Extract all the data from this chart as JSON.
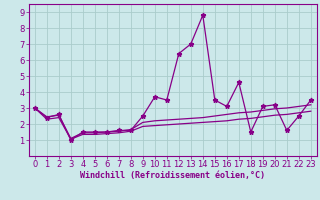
{
  "xlabel": "Windchill (Refroidissement éolien,°C)",
  "bg_color": "#cce8ea",
  "grid_color": "#aacccc",
  "line_color": "#880088",
  "xlim": [
    -0.5,
    23.5
  ],
  "ylim": [
    0,
    9.5
  ],
  "xticks": [
    0,
    1,
    2,
    3,
    4,
    5,
    6,
    7,
    8,
    9,
    10,
    11,
    12,
    13,
    14,
    15,
    16,
    17,
    18,
    19,
    20,
    21,
    22,
    23
  ],
  "yticks": [
    1,
    2,
    3,
    4,
    5,
    6,
    7,
    8,
    9
  ],
  "series_main": [
    3.0,
    2.4,
    2.6,
    1.0,
    1.5,
    1.5,
    1.5,
    1.6,
    1.6,
    2.5,
    3.7,
    3.5,
    6.4,
    7.0,
    8.8,
    3.5,
    3.1,
    4.6,
    1.5,
    3.1,
    3.2,
    1.6,
    2.5,
    3.5
  ],
  "series_upper": [
    3.0,
    2.45,
    2.55,
    1.1,
    1.45,
    1.45,
    1.5,
    1.55,
    1.65,
    2.1,
    2.2,
    2.25,
    2.3,
    2.35,
    2.4,
    2.5,
    2.6,
    2.7,
    2.75,
    2.85,
    2.95,
    3.0,
    3.1,
    3.2
  ],
  "series_lower": [
    3.0,
    2.3,
    2.4,
    1.05,
    1.35,
    1.35,
    1.4,
    1.45,
    1.55,
    1.85,
    1.9,
    1.95,
    2.0,
    2.05,
    2.1,
    2.15,
    2.2,
    2.3,
    2.35,
    2.45,
    2.55,
    2.6,
    2.7,
    2.8
  ],
  "xlabel_fontsize": 6,
  "tick_fontsize": 6
}
